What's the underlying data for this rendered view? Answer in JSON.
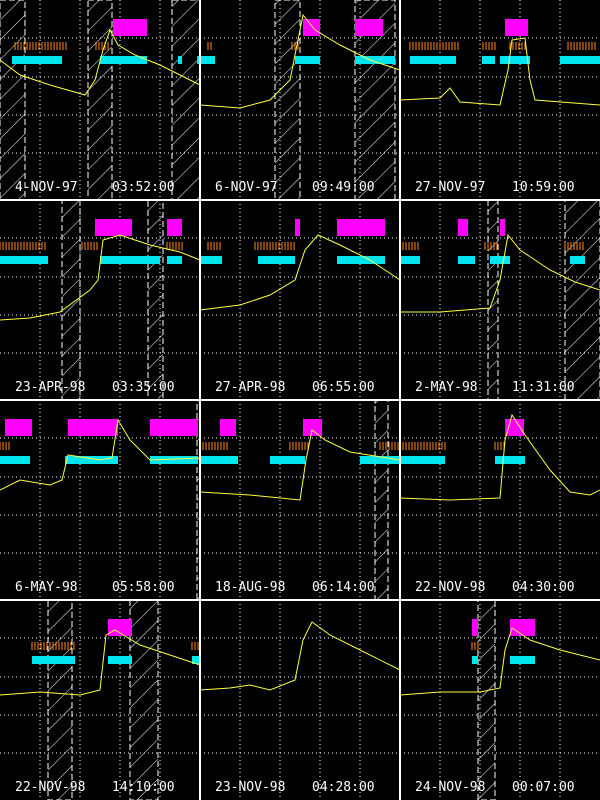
{
  "panels": [
    {
      "date": "4-NOV-97",
      "time": "03:52:00"
    },
    {
      "date": "6-NOV-97",
      "time": "09:49:00"
    },
    {
      "date": "27-NOV-97",
      "time": "10:59:00"
    },
    {
      "date": "23-APR-98",
      "time": "03:35:00"
    },
    {
      "date": "27-APR-98",
      "time": "06:55:00"
    },
    {
      "date": "2-MAY-98",
      "time": "11:31:00"
    },
    {
      "date": "6-MAY-98",
      "time": "05:58:00"
    },
    {
      "date": "18-AUG-98",
      "time": "06:14:00"
    },
    {
      "date": "22-NOV-98",
      "time": "04:30:00"
    },
    {
      "date": "22-NOV-98",
      "time": "14:10:00"
    },
    {
      "date": "23-NOV-98",
      "time": "04:28:00"
    },
    {
      "date": "24-NOV-98",
      "time": "00:07:00"
    }
  ]
}
